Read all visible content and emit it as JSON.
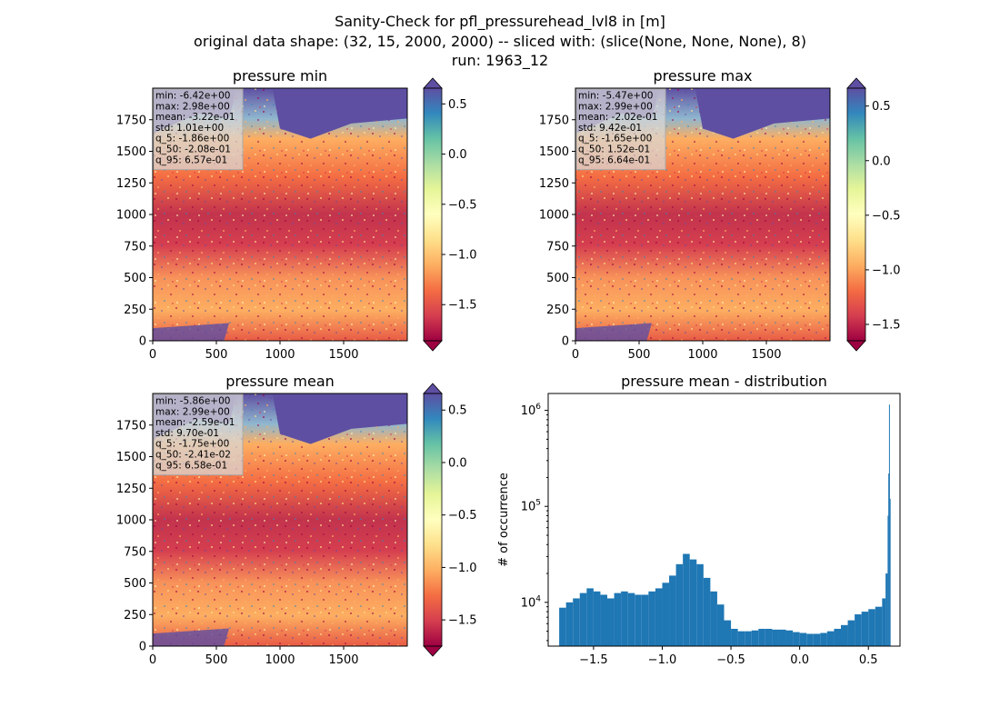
{
  "figure": {
    "suptitle": [
      "Sanity-Check for pfl_pressurehead_lvl8 in [m]",
      "original data shape: (32, 15, 2000, 2000) -- sliced with: (slice(None, None, None), 8)",
      "run: 1963_12"
    ]
  },
  "colors": {
    "colormap": "Spectral",
    "spectral_stops": [
      "#9e0142",
      "#d53e4f",
      "#f46d43",
      "#fdae61",
      "#fee08b",
      "#ffffbf",
      "#e6f598",
      "#abdda4",
      "#66c2a5",
      "#3288bd",
      "#5e4fa2"
    ],
    "histogram_bar": "#1f77b4"
  },
  "chart_data": [
    {
      "type": "heatmap",
      "title": "pressure min",
      "colormap": "Spectral",
      "xlim": [
        0,
        2000
      ],
      "ylim": [
        0,
        2000
      ],
      "xticks": [
        "0",
        "500",
        "1000",
        "1500"
      ],
      "yticks": [
        "0",
        "250",
        "500",
        "750",
        "1000",
        "1250",
        "1500",
        "1750"
      ],
      "colorbar": {
        "range": [
          -1.86,
          0.657
        ],
        "extend": "both",
        "ticks": [
          "0.5",
          "0.0",
          "−0.5",
          "−1.0",
          "−1.5"
        ],
        "tick_values": [
          0.5,
          0.0,
          -0.5,
          -1.0,
          -1.5
        ]
      },
      "stats": [
        "min: -6.42e+00",
        "max: 2.98e+00",
        "mean: -3.22e-01",
        "std: 1.01e+00",
        "q_5: -1.86e+00",
        "q_50: -2.08e-01",
        "q_95: 6.57e-01"
      ]
    },
    {
      "type": "heatmap",
      "title": "pressure max",
      "colormap": "Spectral",
      "xlim": [
        0,
        2000
      ],
      "ylim": [
        0,
        2000
      ],
      "xticks": [
        "0",
        "500",
        "1000",
        "1500"
      ],
      "yticks": [
        "0",
        "250",
        "500",
        "750",
        "1000",
        "1250",
        "1500",
        "1750"
      ],
      "colorbar": {
        "range": [
          -1.65,
          0.664
        ],
        "extend": "both",
        "ticks": [
          "0.5",
          "0.0",
          "−0.5",
          "−1.0",
          "−1.5"
        ],
        "tick_values": [
          0.5,
          0.0,
          -0.5,
          -1.0,
          -1.5
        ]
      },
      "stats": [
        "min: -5.47e+00",
        "max: 2.99e+00",
        "mean: -2.02e-01",
        "std: 9.42e-01",
        "q_5: -1.65e+00",
        "q_50: 1.52e-01",
        "q_95: 6.64e-01"
      ]
    },
    {
      "type": "heatmap",
      "title": "pressure mean",
      "colormap": "Spectral",
      "xlim": [
        0,
        2000
      ],
      "ylim": [
        0,
        2000
      ],
      "xticks": [
        "0",
        "500",
        "1000",
        "1500"
      ],
      "yticks": [
        "0",
        "250",
        "500",
        "750",
        "1000",
        "1250",
        "1500",
        "1750"
      ],
      "colorbar": {
        "range": [
          -1.75,
          0.658
        ],
        "extend": "both",
        "ticks": [
          "0.5",
          "0.0",
          "−0.5",
          "−1.0",
          "−1.5"
        ],
        "tick_values": [
          0.5,
          0.0,
          -0.5,
          -1.0,
          -1.5
        ]
      },
      "stats": [
        "min: -5.86e+00",
        "max: 2.99e+00",
        "mean: -2.59e-01",
        "std: 9.70e-01",
        "q_5: -1.75e+00",
        "q_50: -2.41e-02",
        "q_95: 6.58e-01"
      ]
    },
    {
      "type": "bar",
      "title": "pressure mean - distribution",
      "ylabel": "# of occurrence",
      "xlabel": "",
      "yscale": "log",
      "xlim": [
        -1.83,
        0.73
      ],
      "ylim": [
        3500,
        1500000
      ],
      "xticks": [
        "−1.5",
        "−1.0",
        "−0.5",
        "0.0",
        "0.5"
      ],
      "xtick_values": [
        -1.5,
        -1.0,
        -0.5,
        0.0,
        0.5
      ],
      "yticks": [
        {
          "base": "10",
          "exp": "4",
          "value": 10000
        },
        {
          "base": "10",
          "exp": "5",
          "value": 100000
        },
        {
          "base": "10",
          "exp": "6",
          "value": 1000000
        }
      ],
      "bins": [
        [
          -1.75,
          8800
        ],
        [
          -1.7,
          10000
        ],
        [
          -1.65,
          11000
        ],
        [
          -1.6,
          12500
        ],
        [
          -1.55,
          14000
        ],
        [
          -1.5,
          13000
        ],
        [
          -1.45,
          12000
        ],
        [
          -1.4,
          11000
        ],
        [
          -1.35,
          12500
        ],
        [
          -1.3,
          13000
        ],
        [
          -1.25,
          12500
        ],
        [
          -1.2,
          12000
        ],
        [
          -1.15,
          12000
        ],
        [
          -1.1,
          13000
        ],
        [
          -1.05,
          14000
        ],
        [
          -1.0,
          16000
        ],
        [
          -0.95,
          19000
        ],
        [
          -0.9,
          25000
        ],
        [
          -0.85,
          32000
        ],
        [
          -0.8,
          28000
        ],
        [
          -0.75,
          25000
        ],
        [
          -0.7,
          18000
        ],
        [
          -0.65,
          13000
        ],
        [
          -0.6,
          9500
        ],
        [
          -0.55,
          6500
        ],
        [
          -0.5,
          5300
        ],
        [
          -0.45,
          5000
        ],
        [
          -0.4,
          5000
        ],
        [
          -0.35,
          5100
        ],
        [
          -0.3,
          5300
        ],
        [
          -0.25,
          5300
        ],
        [
          -0.2,
          5200
        ],
        [
          -0.15,
          5200
        ],
        [
          -0.1,
          5100
        ],
        [
          -0.05,
          4900
        ],
        [
          0.0,
          4800
        ],
        [
          0.05,
          4700
        ],
        [
          0.1,
          4700
        ],
        [
          0.15,
          4800
        ],
        [
          0.2,
          5000
        ],
        [
          0.25,
          5300
        ],
        [
          0.3,
          5800
        ],
        [
          0.35,
          6500
        ],
        [
          0.4,
          7500
        ],
        [
          0.45,
          8000
        ],
        [
          0.5,
          8500
        ],
        [
          0.55,
          9000
        ],
        [
          0.6,
          11000
        ],
        [
          0.625,
          20000
        ],
        [
          0.64,
          80000
        ],
        [
          0.645,
          220000
        ],
        [
          0.65,
          1150000
        ],
        [
          0.655,
          120000
        ]
      ]
    }
  ]
}
